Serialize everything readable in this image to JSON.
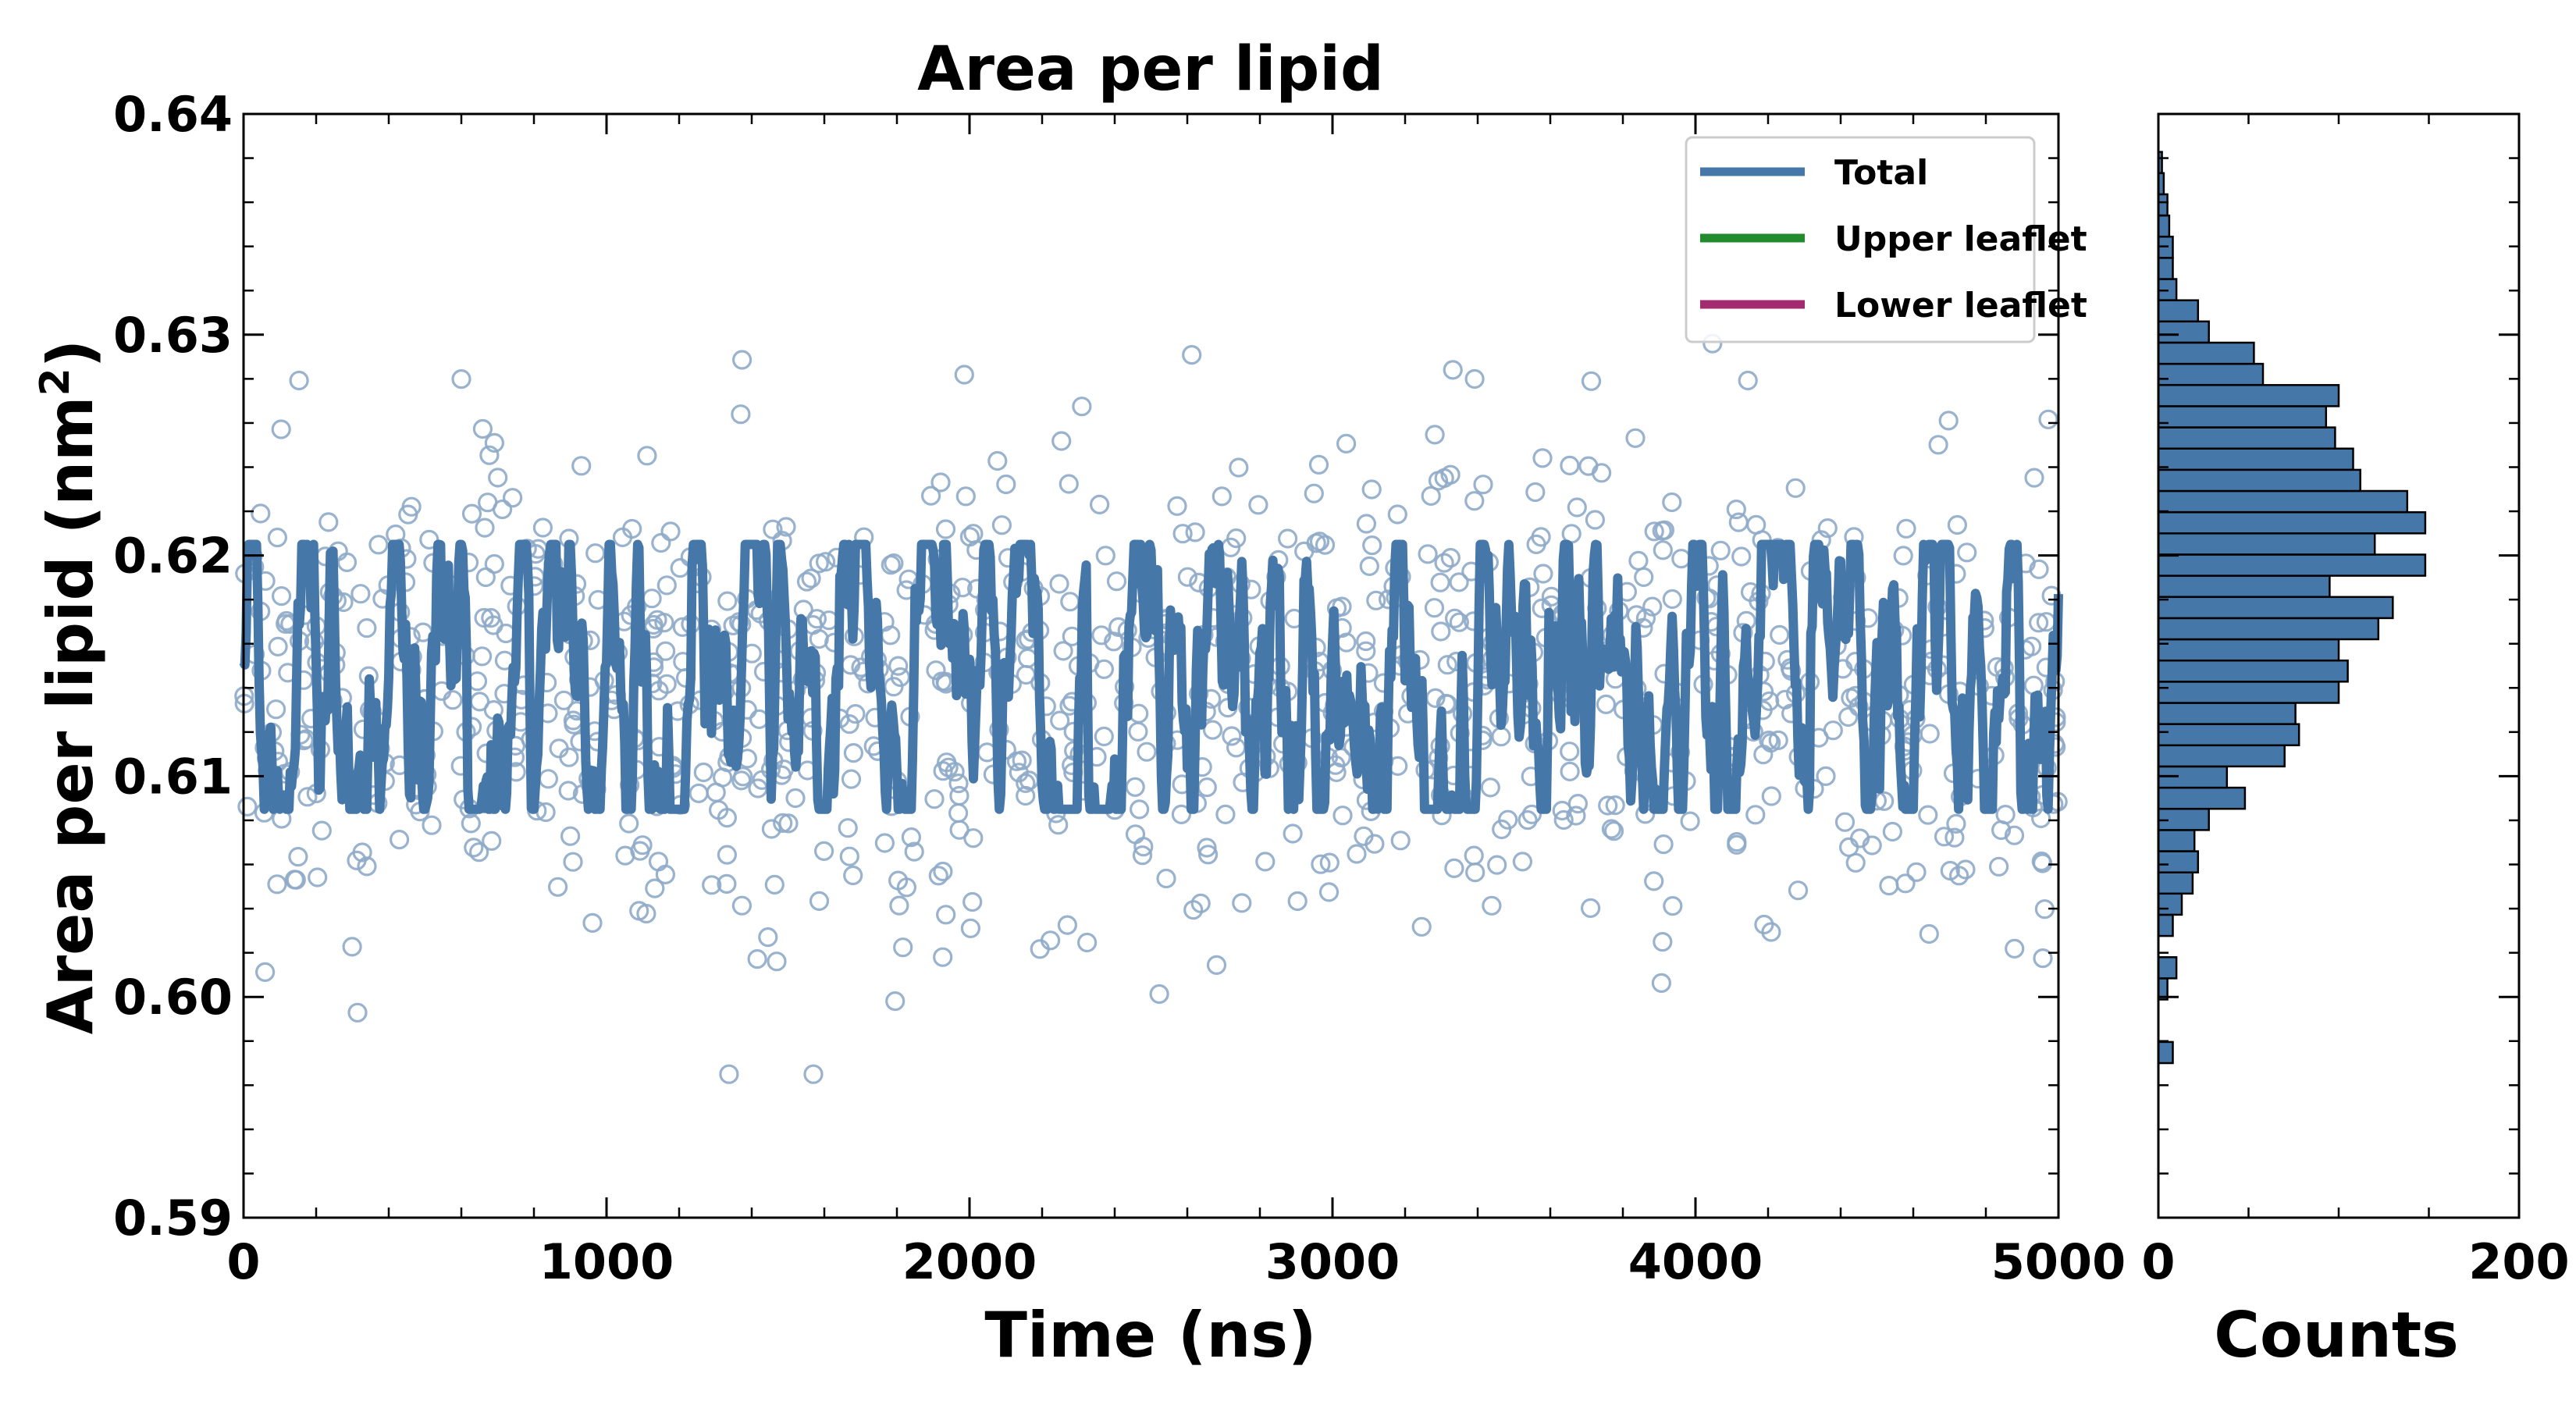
{
  "chart_data": [
    {
      "type": "scatter",
      "title": "Area per lipid",
      "xlabel": "Time (ns)",
      "ylabel": "Area per lipid (nm",
      "ylabel_sup": "2",
      "ylabel_close": ")",
      "xlim": [
        0,
        5000
      ],
      "ylim": [
        0.59,
        0.64
      ],
      "x_ticks": [
        0,
        1000,
        2000,
        3000,
        4000,
        5000
      ],
      "x_tick_labels": [
        "0",
        "1000",
        "2000",
        "3000",
        "4000",
        "5000"
      ],
      "y_ticks": [
        0.59,
        0.6,
        0.61,
        0.62,
        0.63,
        0.64
      ],
      "y_tick_labels": [
        "0.59",
        "0.60",
        "0.61",
        "0.62",
        "0.63",
        "0.64"
      ],
      "grid": false,
      "legend_position": "top-right",
      "marker_color": "#8eaac8",
      "series": [
        {
          "name": "Total",
          "color": "#4677a9",
          "mean": 0.614,
          "spread": 0.0045
        },
        {
          "name": "Upper leaflet",
          "color": "#228b2e"
        },
        {
          "name": "Lower leaflet",
          "color": "#a32a6e"
        }
      ],
      "scatter_points": {
        "n": 1000,
        "mean": 0.614,
        "sd": 0.0055,
        "x_range": [
          0,
          5000
        ]
      }
    },
    {
      "type": "bar",
      "orientation": "horizontal",
      "xlabel": "Counts",
      "xlim": [
        0,
        200
      ],
      "x_ticks": [
        0,
        200
      ],
      "x_tick_labels": [
        "0",
        "200"
      ],
      "bar_color": "#4677a9",
      "bin_edges_start": 0.597,
      "bin_width": 0.00096,
      "counts": [
        8,
        0,
        0,
        5,
        10,
        0,
        8,
        13,
        19,
        22,
        20,
        28,
        48,
        38,
        70,
        78,
        76,
        100,
        105,
        100,
        122,
        130,
        95,
        148,
        120,
        148,
        138,
        112,
        108,
        98,
        93,
        100,
        58,
        53,
        28,
        22,
        10,
        8,
        8,
        6,
        5,
        3,
        2
      ]
    }
  ]
}
